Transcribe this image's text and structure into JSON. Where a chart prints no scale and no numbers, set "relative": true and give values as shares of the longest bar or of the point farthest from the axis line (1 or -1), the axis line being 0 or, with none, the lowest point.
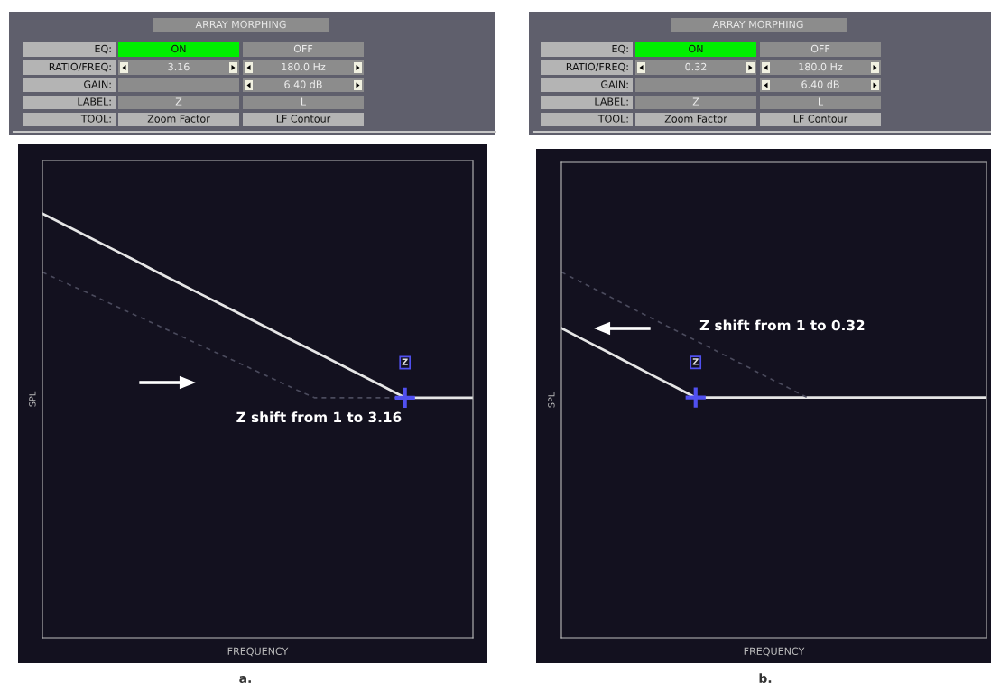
{
  "chart_data": [
    {
      "type": "line",
      "relative": true,
      "xlabel": "FREQUENCY",
      "ylabel": "SPL",
      "grid": false,
      "legend": false,
      "categories": [
        null,
        null,
        null,
        null,
        null,
        null,
        null,
        null,
        null,
        null,
        null,
        null,
        null,
        null,
        null,
        null,
        null,
        null,
        null,
        null
      ],
      "series": [
        {
          "color": "#e6e6e6",
          "line_style": "solid",
          "values": [
            1.0,
            0.973,
            0.946,
            0.919,
            0.892,
            0.864,
            0.837,
            0.81,
            0.783,
            0.756,
            0.729,
            0.702,
            0.675,
            0.648,
            0.621,
            0.594,
            0.566,
            0.566,
            0.566,
            0.566
          ]
        },
        {
          "color": "#4a4a5c",
          "line_style": "dashed",
          "values": [
            0.862,
            0.837,
            0.813,
            0.788,
            0.763,
            0.739,
            0.714,
            0.689,
            0.664,
            0.64,
            0.615,
            0.59,
            0.566,
            0.566,
            0.566,
            0.566,
            0.566,
            null,
            null,
            null
          ]
        }
      ],
      "annotations": [
        "ARRAY MORPHING",
        "EQ:",
        "ON",
        "OFF",
        "RATIO/FREQ:",
        "3.16",
        "180.0 Hz",
        "GAIN:",
        "6.40 dB",
        "LABEL:",
        "Z",
        "L",
        "TOOL:",
        "Zoom Factor",
        "LF Contour",
        "Z",
        "Z shift from 1 to 3.16",
        "a."
      ]
    },
    {
      "type": "line",
      "relative": true,
      "xlabel": "FREQUENCY",
      "ylabel": "SPL",
      "grid": false,
      "legend": false,
      "categories": [
        null,
        null,
        null,
        null,
        null,
        null,
        null,
        null,
        null,
        null,
        null,
        null,
        null,
        null,
        null,
        null,
        null,
        null,
        null,
        null
      ],
      "series": [
        {
          "color": "#e6e6e6",
          "line_style": "solid",
          "values": [
            0.847,
            0.815,
            0.784,
            0.752,
            0.72,
            0.689,
            0.657,
            0.657,
            0.657,
            0.657,
            0.657,
            0.657,
            0.657,
            0.657,
            0.657,
            0.657,
            0.657,
            0.657,
            0.657,
            0.657
          ]
        },
        {
          "color": "#4a4a5c",
          "line_style": "dashed",
          "values": [
            1.0,
            0.969,
            0.938,
            0.906,
            0.875,
            0.844,
            0.813,
            0.782,
            0.751,
            0.719,
            0.688,
            0.657,
            null,
            null,
            null,
            null,
            null,
            null,
            null,
            null
          ]
        }
      ],
      "annotations": [
        "ARRAY MORPHING",
        "EQ:",
        "ON",
        "OFF",
        "RATIO/FREQ:",
        "0.32",
        "180.0 Hz",
        "GAIN:",
        "6.40 dB",
        "LABEL:",
        "Z",
        "L",
        "TOOL:",
        "Zoom Factor",
        "LF Contour",
        "Z",
        "Z shift from 1 to 0.32",
        "b."
      ]
    }
  ]
}
